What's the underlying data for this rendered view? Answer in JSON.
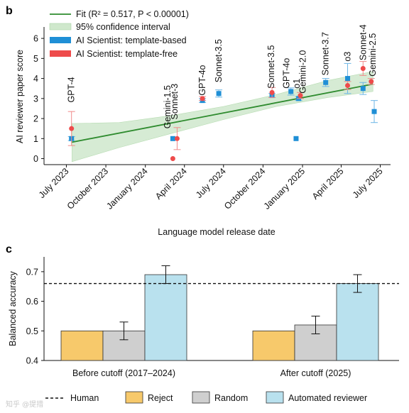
{
  "panel_b": {
    "letter": "b",
    "legend": {
      "fit": "Fit (R² = 0.517, P < 0.00001)",
      "ci": "95% confidence interval",
      "template_based": "AI Scientist: template-based",
      "template_free": "AI Scientist: template-free"
    }
  },
  "panel_c": {
    "letter": "c",
    "legend": {
      "human": "Human",
      "reject": "Reject",
      "random": "Random",
      "automated": "Automated reviewer"
    }
  },
  "watermark": "知乎 @提措",
  "colors": {
    "fit_line": "#2e8b2e",
    "ci_fill": "#cfe8cc",
    "template_based": "#1f8fd6",
    "template_free": "#ee4b4b",
    "reject": "#f7c96b",
    "random": "#cfcfcf",
    "automated": "#b9e1ee"
  },
  "chart_data": [
    {
      "type": "scatter",
      "xlabel": "Language model release date",
      "ylabel": "AI reviewer paper score",
      "ylim": [
        -0.3,
        6.5
      ],
      "yticks": [
        0,
        1,
        2,
        3,
        4,
        5,
        6
      ],
      "xticks": [
        {
          "label": "July 2023",
          "date": "2023-07-01"
        },
        {
          "label": "October 2023",
          "date": "2023-10-01"
        },
        {
          "label": "January 2024",
          "date": "2024-01-01"
        },
        {
          "label": "April 2024",
          "date": "2024-04-01"
        },
        {
          "label": "July 2024",
          "date": "2024-07-01"
        },
        {
          "label": "October 2024",
          "date": "2024-10-01"
        },
        {
          "label": "January 2025",
          "date": "2025-01-01"
        },
        {
          "label": "April 2025",
          "date": "2025-04-01"
        },
        {
          "label": "July 2025",
          "date": "2025-07-01"
        }
      ],
      "fit": {
        "start": {
          "date": "2023-07-14",
          "y": 0.82
        },
        "end": {
          "date": "2025-06-14",
          "y": 3.72
        }
      },
      "ci_band": [
        {
          "date": "2023-07-14",
          "lo": -0.15,
          "hi": 1.75
        },
        {
          "date": "2023-11-01",
          "lo": 0.55,
          "hi": 1.8
        },
        {
          "date": "2024-03-01",
          "lo": 1.25,
          "hi": 2.15
        },
        {
          "date": "2024-07-01",
          "lo": 1.95,
          "hi": 2.6
        },
        {
          "date": "2024-11-01",
          "lo": 2.6,
          "hi": 3.2
        },
        {
          "date": "2025-03-01",
          "lo": 3.05,
          "hi": 3.9
        },
        {
          "date": "2025-06-14",
          "lo": 3.35,
          "hi": 4.35
        }
      ],
      "series": [
        {
          "name": "AI Scientist: template-based",
          "points": [
            {
              "date": "2023-07-13",
              "y": 1.0,
              "err": 0.1
            },
            {
              "date": "2024-03-05",
              "y": 1.0,
              "err": 0
            },
            {
              "date": "2024-05-13",
              "y": 2.9,
              "err": 0.1
            },
            {
              "date": "2024-06-20",
              "y": 3.25,
              "err": 0.18
            },
            {
              "date": "2024-10-22",
              "y": 3.15,
              "err": 0.1
            },
            {
              "date": "2024-12-05",
              "y": 3.35,
              "err": 0.18
            },
            {
              "date": "2024-12-17",
              "y": 1.0,
              "err": 0
            },
            {
              "date": "2024-12-23",
              "y": 3.0,
              "err": 0.1
            },
            {
              "date": "2025-02-24",
              "y": 3.8,
              "err": 0.2
            },
            {
              "date": "2025-04-16",
              "y": 4.0,
              "err": 0.75
            },
            {
              "date": "2025-05-22",
              "y": 3.5,
              "err": 0.3
            },
            {
              "date": "2025-06-17",
              "y": 2.35,
              "err": 0.55
            }
          ]
        },
        {
          "name": "AI Scientist: template-free",
          "points": [
            {
              "date": "2023-07-13",
              "y": 1.5,
              "err": 0.85
            },
            {
              "date": "2024-03-05",
              "y": 0.0,
              "err": 0
            },
            {
              "date": "2024-03-15",
              "y": 1.0,
              "err": 0.55
            },
            {
              "date": "2024-05-13",
              "y": 3.0,
              "err": 0.1
            },
            {
              "date": "2024-10-22",
              "y": 3.3,
              "err": 0.25
            },
            {
              "date": "2024-12-27",
              "y": 3.15,
              "err": 0.15
            },
            {
              "date": "2025-04-16",
              "y": 3.65,
              "err": 0.2
            },
            {
              "date": "2025-05-22",
              "y": 4.5,
              "err": 0.35
            },
            {
              "date": "2025-06-10",
              "y": 3.85,
              "err": 0.15
            }
          ]
        }
      ],
      "annotations": [
        {
          "text": "GPT-4",
          "date": "2023-07-13",
          "y": 2.8
        },
        {
          "text": "Gemini-1.5",
          "date": "2024-02-22",
          "y": 1.5
        },
        {
          "text": "Sonnet-3",
          "date": "2024-03-09",
          "y": 1.95
        },
        {
          "text": "GPT-4o",
          "date": "2024-05-13",
          "y": 3.15
        },
        {
          "text": "Sonnet-3.5",
          "date": "2024-06-20",
          "y": 3.8
        },
        {
          "text": "Sonnet-3.5",
          "date": "2024-10-20",
          "y": 3.5
        },
        {
          "text": "GPT-4o",
          "date": "2024-11-25",
          "y": 3.5
        },
        {
          "text": "o1",
          "date": "2024-12-19",
          "y": 3.5
        },
        {
          "text": "Gemini-2.0",
          "date": "2025-01-02",
          "y": 3.25
        },
        {
          "text": "Sonnet-3.7",
          "date": "2025-02-24",
          "y": 4.15
        },
        {
          "text": "o3",
          "date": "2025-04-16",
          "y": 4.85
        },
        {
          "text": "Sonnet-4",
          "date": "2025-05-22",
          "y": 4.9
        },
        {
          "text": "Gemini-2.5",
          "date": "2025-06-14",
          "y": 4.1
        }
      ]
    },
    {
      "type": "bar",
      "ylabel": "Balanced accuracy",
      "ylim": [
        0.4,
        0.75
      ],
      "yticks": [
        0.4,
        0.5,
        0.6,
        0.7
      ],
      "categories": [
        "Before cutoff (2017–2024)",
        "After cutoff (2025)"
      ],
      "human_line": 0.66,
      "series": [
        {
          "name": "Reject",
          "values": [
            0.5,
            0.5
          ],
          "errors": [
            0,
            0
          ]
        },
        {
          "name": "Random",
          "values": [
            0.5,
            0.52
          ],
          "errors": [
            0.03,
            0.03
          ]
        },
        {
          "name": "Automated reviewer",
          "values": [
            0.69,
            0.66
          ],
          "errors": [
            0.03,
            0.03
          ]
        }
      ]
    }
  ]
}
